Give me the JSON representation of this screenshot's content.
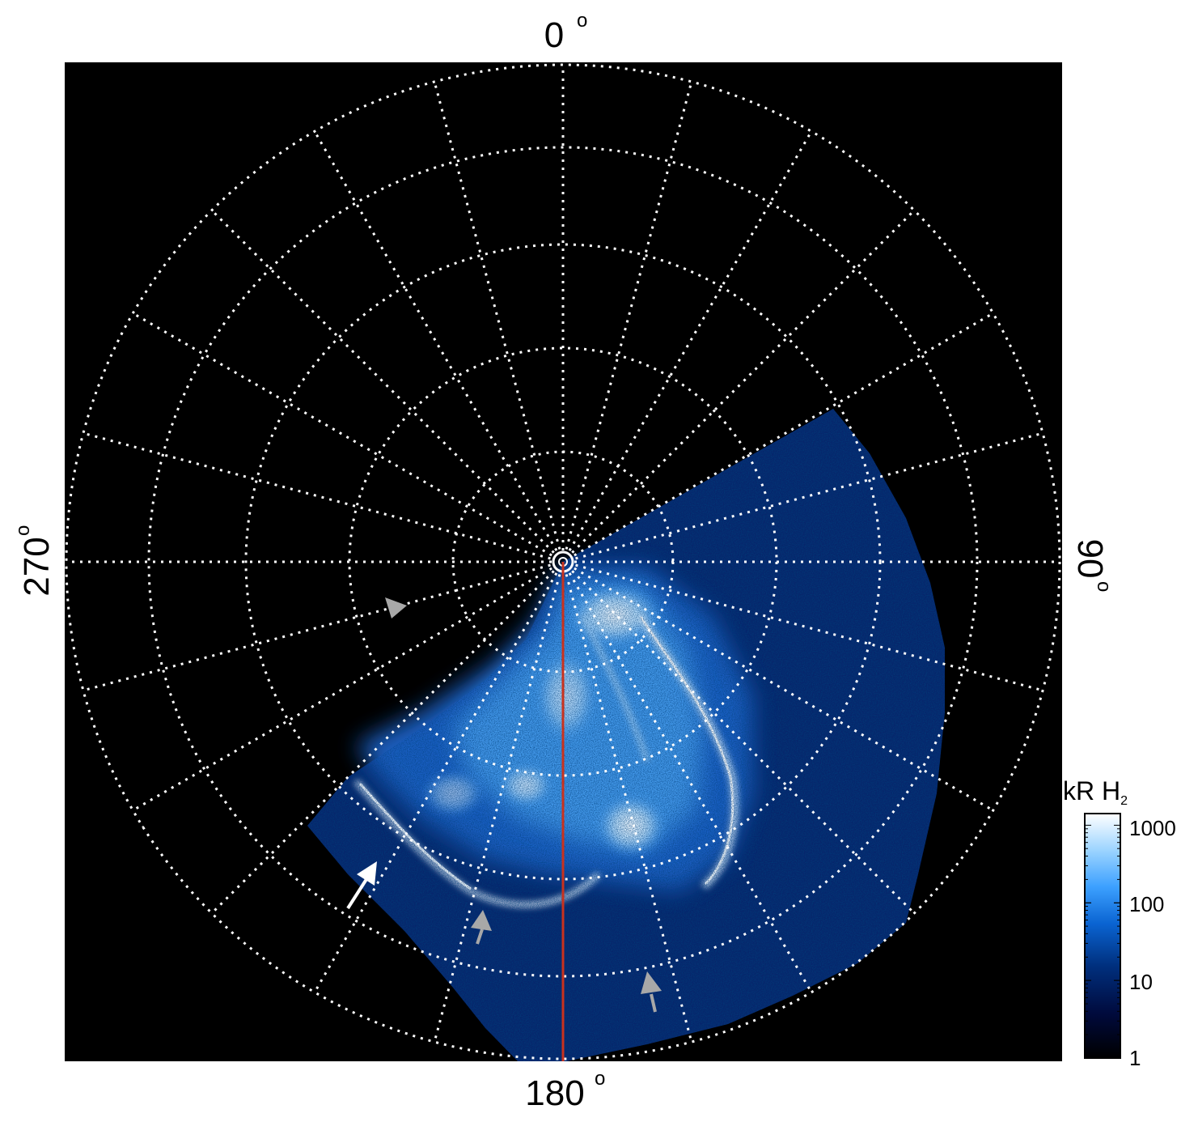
{
  "labels": {
    "top": "0",
    "bottom": "180",
    "left": "270",
    "right": "90",
    "degree_mark": "o"
  },
  "colorbar": {
    "title_main": "kR H",
    "title_sub": "2",
    "ticks": [
      "1000",
      "100",
      "10",
      "1"
    ]
  },
  "colors": {
    "background": "#000000",
    "grid": "#ffffff",
    "meridian_line": "#c8321e",
    "arrow_primary": "#ffffff",
    "arrow_secondary": "#a8a8a8",
    "colormap": [
      "#000000",
      "#000a3c",
      "#00307f",
      "#0a64d2",
      "#3ca0ff",
      "#9cd4ff",
      "#ffffff"
    ]
  }
}
